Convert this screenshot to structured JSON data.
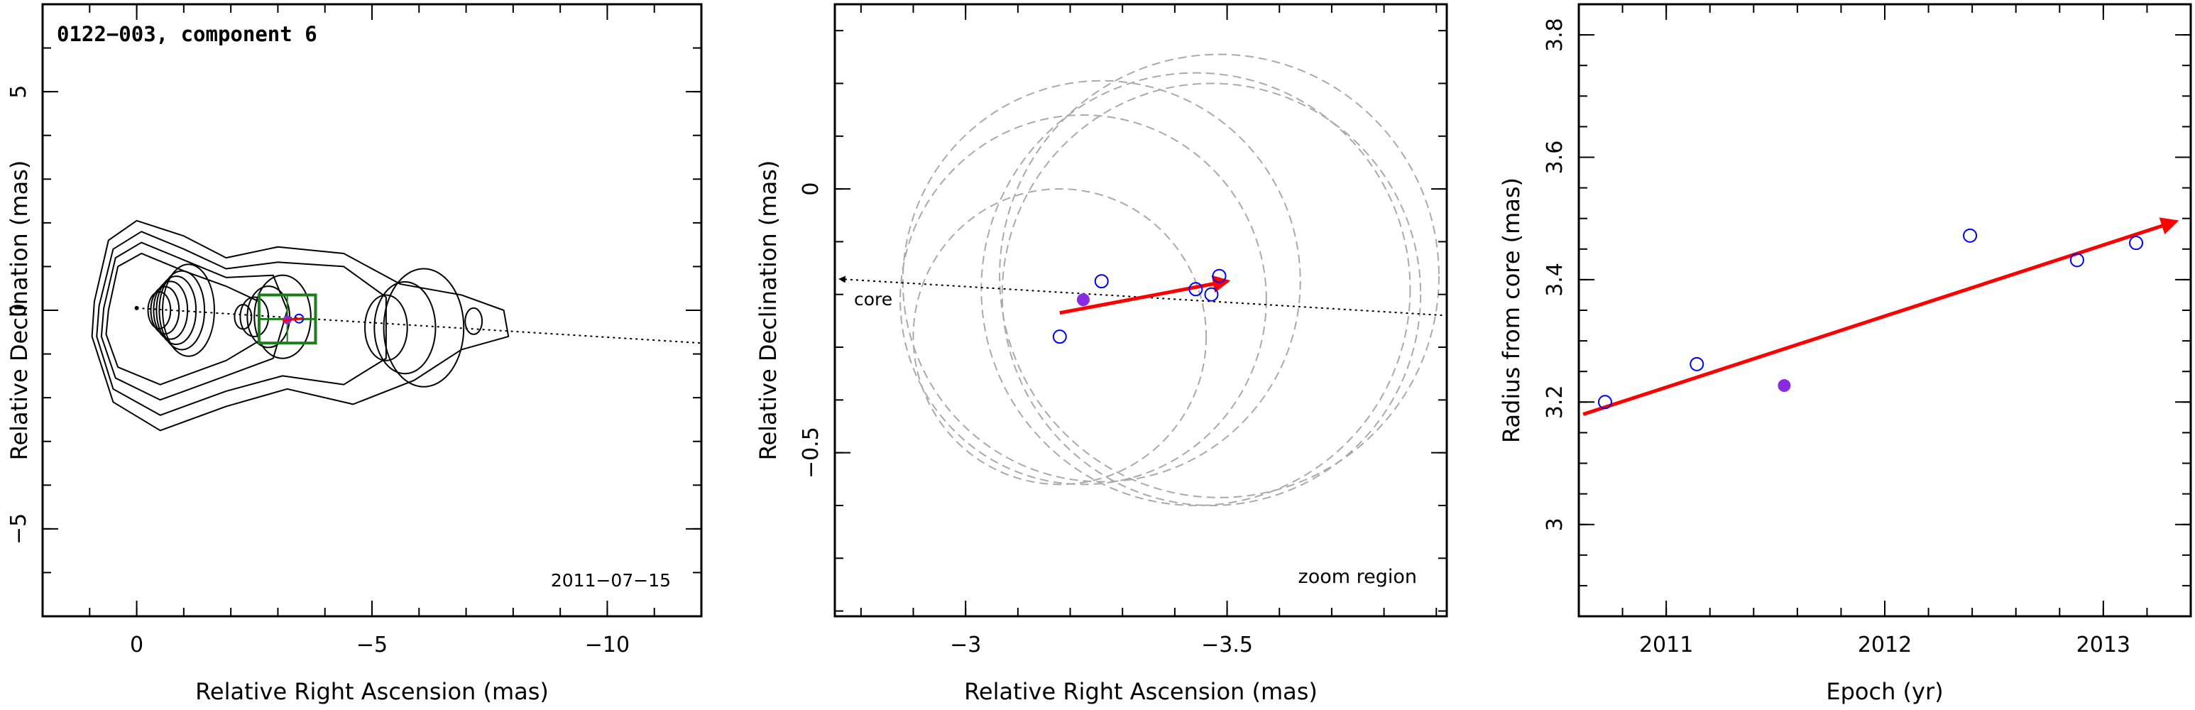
{
  "chart_data": [
    {
      "type": "contour",
      "title": "0122−003, component 6",
      "epoch_label": "2011−07−15",
      "xlabel": "Relative Right Ascension (mas)",
      "ylabel": "Relative Declination (mas)",
      "xlim": [
        2,
        -12
      ],
      "ylim": [
        -7,
        7
      ],
      "xticks": [
        0,
        -5,
        -10
      ],
      "xtick_labels": [
        "0",
        "−5",
        "−10"
      ],
      "yticks": [
        -5,
        0,
        5
      ],
      "ytick_labels": [
        "−5",
        "0",
        "5"
      ],
      "contour_peaks": [
        {
          "x": 0.0,
          "y": 0.0,
          "levels": 9
        },
        {
          "x": -1.9,
          "y": -0.15,
          "levels": 5
        },
        {
          "x": -4.4,
          "y": -0.4,
          "levels": 4
        },
        {
          "x": -6.8,
          "y": -0.25,
          "levels": 1
        }
      ],
      "jet_direction_line": {
        "x": [
          0,
          -12
        ],
        "y": [
          0.05,
          -0.75
        ]
      },
      "zoom_box": {
        "x": [
          -2.6,
          -3.8
        ],
        "y": [
          0.35,
          -0.75
        ]
      },
      "component_markers": [
        {
          "x": -3.2,
          "y": -0.22,
          "style": "filled-purple"
        },
        {
          "x": -3.45,
          "y": -0.19,
          "style": "open-blue"
        }
      ],
      "colors": {
        "contour": "#000000",
        "zoom_box": "#1a7f1a",
        "trend": "#ff0000",
        "component_open": "#0000ff",
        "component_filled": "#8a2be2"
      }
    },
    {
      "type": "scatter",
      "corner_label": "zoom region",
      "core_label": "core",
      "xlabel": "Relative Right Ascension (mas)",
      "ylabel": "Relative Declination (mas)",
      "xlim": [
        -2.75,
        -3.92
      ],
      "ylim": [
        -0.81,
        0.35
      ],
      "xticks": [
        -3,
        -3.5
      ],
      "xtick_labels": [
        "−3",
        "−3.5"
      ],
      "yticks": [
        -0.5,
        0
      ],
      "ytick_labels": [
        "−0.5",
        "0"
      ],
      "points_open": [
        {
          "x": -3.18,
          "y": -0.28
        },
        {
          "x": -3.26,
          "y": -0.175
        },
        {
          "x": -3.44,
          "y": -0.19
        },
        {
          "x": -3.47,
          "y": -0.2
        },
        {
          "x": -3.485,
          "y": -0.165
        }
      ],
      "points_filled": [
        {
          "x": -3.225,
          "y": -0.21
        }
      ],
      "trend_arrow": {
        "x": [
          -3.18,
          -3.5
        ],
        "y": [
          -0.235,
          -0.175
        ]
      },
      "core_direction_line": {
        "x": [
          -2.75,
          -3.92
        ],
        "y": [
          -0.17,
          -0.24
        ]
      },
      "error_circles": [
        {
          "x": -3.18,
          "y": -0.28,
          "r": 0.28
        },
        {
          "x": -3.26,
          "y": -0.175,
          "r": 0.38
        },
        {
          "x": -3.44,
          "y": -0.19,
          "r": 0.41
        },
        {
          "x": -3.47,
          "y": -0.2,
          "r": 0.4
        },
        {
          "x": -3.485,
          "y": -0.165,
          "r": 0.42
        },
        {
          "x": -3.225,
          "y": -0.21,
          "r": 0.35
        }
      ],
      "colors": {
        "circles": "#aaaaaa",
        "trend": "#ff0000",
        "open": "#0000ff",
        "filled": "#8a2be2",
        "core_line": "#000000"
      }
    },
    {
      "type": "scatter",
      "xlabel": "Epoch (yr)",
      "ylabel": "Radius from core (mas)",
      "xlim": [
        2010.6,
        2013.4
      ],
      "ylim": [
        2.85,
        3.85
      ],
      "xticks": [
        2011,
        2012,
        2013
      ],
      "xtick_labels": [
        "2011",
        "2012",
        "2013"
      ],
      "yticks": [
        3.0,
        3.2,
        3.4,
        3.6,
        3.8
      ],
      "ytick_labels": [
        "3",
        "3.2",
        "3.4",
        "3.6",
        "3.8"
      ],
      "points_open": [
        {
          "x": 2010.72,
          "y": 3.2
        },
        {
          "x": 2011.14,
          "y": 3.262
        },
        {
          "x": 2012.39,
          "y": 3.472
        },
        {
          "x": 2012.88,
          "y": 3.432
        },
        {
          "x": 2013.15,
          "y": 3.46
        }
      ],
      "points_filled": [
        {
          "x": 2011.54,
          "y": 3.227
        }
      ],
      "trend_arrow": {
        "x": [
          2010.62,
          2013.33
        ],
        "y": [
          3.18,
          3.495
        ]
      },
      "colors": {
        "trend": "#ff0000",
        "open": "#0000ff",
        "filled": "#8a2be2"
      }
    }
  ]
}
